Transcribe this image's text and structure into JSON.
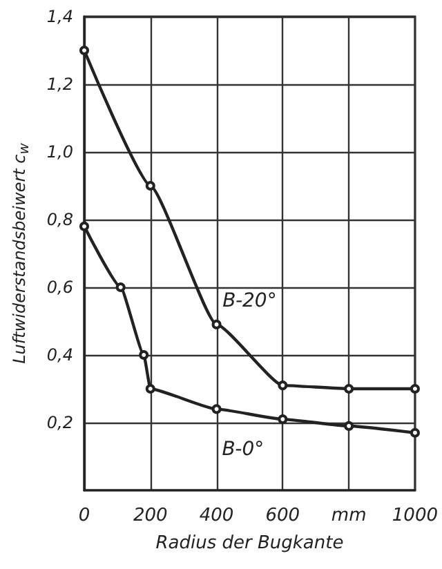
{
  "chart_data": {
    "type": "line",
    "xlabel": "Radius der Bugkante",
    "ylabel": "Luftwiderstandsbeiwert c$_{w}$",
    "xlim": [
      0,
      1000
    ],
    "ylim": [
      0,
      1.4
    ],
    "xticks": [
      0,
      200,
      400,
      600,
      {
        "value": 800,
        "label": "mm"
      },
      1000
    ],
    "yticks": [
      {
        "value": 0.2,
        "label": "0,2"
      },
      {
        "value": 0.4,
        "label": "0,4"
      },
      {
        "value": 0.6,
        "label": "0,6"
      },
      {
        "value": 0.8,
        "label": "0,8"
      },
      {
        "value": 1.0,
        "label": "1,0"
      },
      {
        "value": 1.2,
        "label": "1,2"
      },
      {
        "value": 1.4,
        "label": "1,4"
      }
    ],
    "grid": true,
    "marker": "circle",
    "line_style": "solid",
    "series": [
      {
        "color": "#222222",
        "x": [
          0,
          200,
          400,
          600,
          800,
          1000
        ],
        "values": [
          1.3,
          0.9,
          0.49,
          0.31,
          0.3,
          0.3
        ]
      },
      {
        "color": "#222222",
        "x": [
          0,
          110,
          180,
          200,
          400,
          600,
          800,
          1000
        ],
        "values": [
          0.78,
          0.6,
          0.4,
          0.3,
          0.24,
          0.21,
          0.19,
          0.17
        ]
      }
    ],
    "annotations": [
      {
        "text": "B-20°",
        "x": 500,
        "y": 0.56
      },
      {
        "text": "B-0°",
        "x": 480,
        "y": 0.12
      }
    ]
  }
}
